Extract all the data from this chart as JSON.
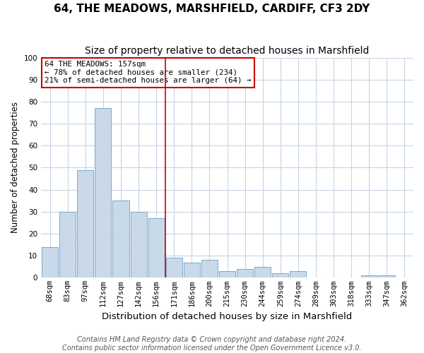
{
  "title": "64, THE MEADOWS, MARSHFIELD, CARDIFF, CF3 2DY",
  "subtitle": "Size of property relative to detached houses in Marshfield",
  "xlabel": "Distribution of detached houses by size in Marshfield",
  "ylabel": "Number of detached properties",
  "bin_labels": [
    "68sqm",
    "83sqm",
    "97sqm",
    "112sqm",
    "127sqm",
    "142sqm",
    "156sqm",
    "171sqm",
    "186sqm",
    "200sqm",
    "215sqm",
    "230sqm",
    "244sqm",
    "259sqm",
    "274sqm",
    "289sqm",
    "303sqm",
    "318sqm",
    "333sqm",
    "347sqm",
    "362sqm"
  ],
  "bar_heights": [
    14,
    30,
    49,
    77,
    35,
    30,
    27,
    9,
    7,
    8,
    3,
    4,
    5,
    2,
    3,
    0,
    0,
    0,
    1,
    1,
    0
  ],
  "bar_color": "#c9d9ea",
  "bar_edge_color": "#7ba8cc",
  "grid_color": "#c5d5e5",
  "red_line_x": 6.5,
  "annotation_text": "64 THE MEADOWS: 157sqm\n← 78% of detached houses are smaller (234)\n21% of semi-detached houses are larger (64) →",
  "annotation_box_color": "#ffffff",
  "annotation_box_edge_color": "#cc0000",
  "red_line_color": "#cc0000",
  "footnote": "Contains HM Land Registry data © Crown copyright and database right 2024.\nContains public sector information licensed under the Open Government Licence v3.0.",
  "ylim": [
    0,
    100
  ],
  "title_fontsize": 11,
  "subtitle_fontsize": 10,
  "xlabel_fontsize": 9.5,
  "ylabel_fontsize": 8.5,
  "tick_fontsize": 7.5,
  "footnote_fontsize": 7
}
